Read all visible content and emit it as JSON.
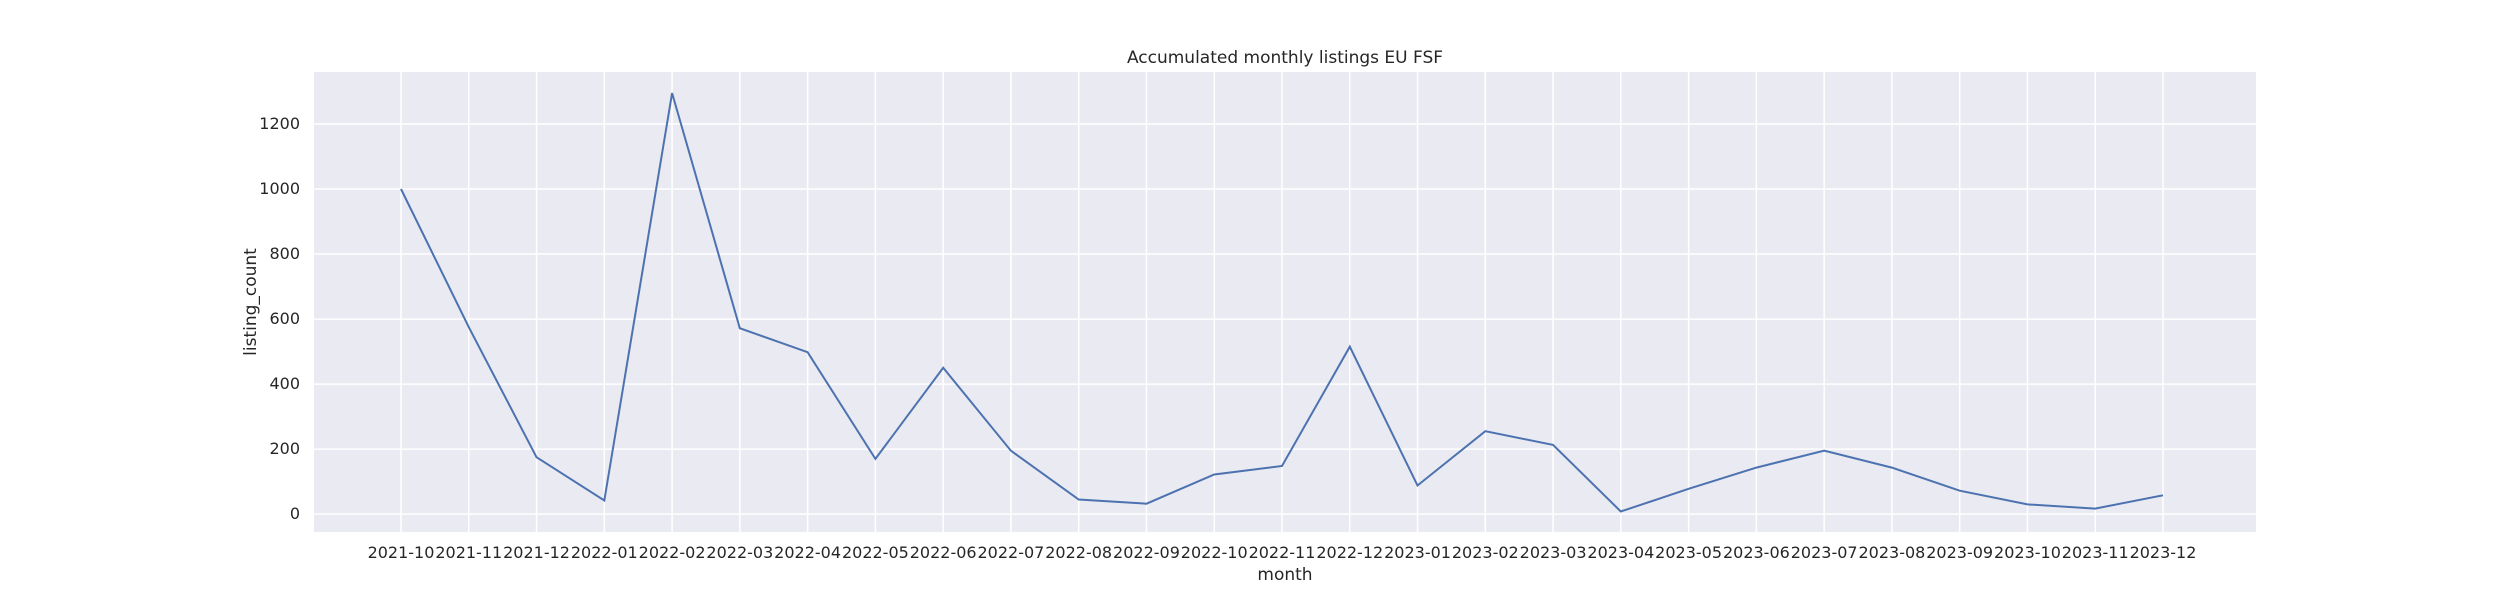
{
  "chart_data": {
    "type": "line",
    "title": "Accumulated monthly listings EU FSF",
    "xlabel": "month",
    "ylabel": "listing_count",
    "categories": [
      "2021-10",
      "2021-11",
      "2021-12",
      "2022-01",
      "2022-02",
      "2022-03",
      "2022-04",
      "2022-05",
      "2022-06",
      "2022-07",
      "2022-08",
      "2022-09",
      "2022-10",
      "2022-11",
      "2022-12",
      "2023-01",
      "2023-02",
      "2023-03",
      "2023-04",
      "2023-05",
      "2023-06",
      "2023-07",
      "2023-08",
      "2023-09",
      "2023-10",
      "2023-11",
      "2023-12"
    ],
    "series": [
      {
        "values": [
          1000,
          575,
          175,
          42,
          1295,
          572,
          498,
          170,
          450,
          195,
          45,
          32,
          122,
          148,
          515,
          88,
          255,
          213,
          8,
          78,
          143,
          195,
          143,
          72,
          30,
          17,
          58
        ],
        "color": "#4c72b0"
      }
    ],
    "yticks": [
      0,
      200,
      400,
      600,
      800,
      1000,
      1200
    ],
    "ylim": [
      -55,
      1360
    ],
    "grid": true,
    "style": {
      "plot_bg": "#eaeaf2",
      "grid_color": "#ffffff"
    }
  }
}
